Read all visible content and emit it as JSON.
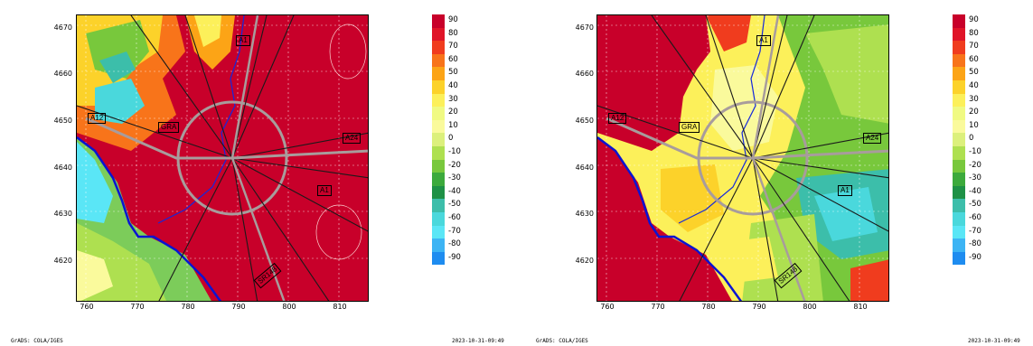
{
  "colorbar": {
    "labels": [
      "90",
      "80",
      "70",
      "60",
      "50",
      "40",
      "30",
      "20",
      "10",
      "0",
      "-10",
      "-20",
      "-30",
      "-40",
      "-50",
      "-60",
      "-70",
      "-80",
      "-90"
    ],
    "colors": [
      "#c8002a",
      "#e01428",
      "#f03c1e",
      "#f8741a",
      "#fca416",
      "#fcd22a",
      "#fcf05a",
      "#f0fa82",
      "#fafa9c",
      "#dcf07c",
      "#aee050",
      "#78c83c",
      "#3caa3c",
      "#1e9146",
      "#3cbeaa",
      "#4ad8dc",
      "#5ae6f6",
      "#3cb4f4",
      "#1e8cf0"
    ]
  },
  "y_ticks": [
    "4670",
    "4660",
    "4650",
    "4640",
    "4630",
    "4620"
  ],
  "x_ticks": [
    "760",
    "770",
    "780",
    "790",
    "800",
    "810"
  ],
  "footer_left": "GrADS: COLA/IGES",
  "footer_right": "2023-10-31-09:49",
  "road_labels": {
    "a1_north": "A1",
    "a12": "A12",
    "gra": "GRA",
    "a24": "A24",
    "a1_south": "A1",
    "sr148": "SR148"
  },
  "panels": [
    {
      "id": "left",
      "base": "#c8002a",
      "sea": "#7ccc5a"
    },
    {
      "id": "right",
      "base": "#c8002a",
      "sea": "#7ccc5a"
    }
  ]
}
